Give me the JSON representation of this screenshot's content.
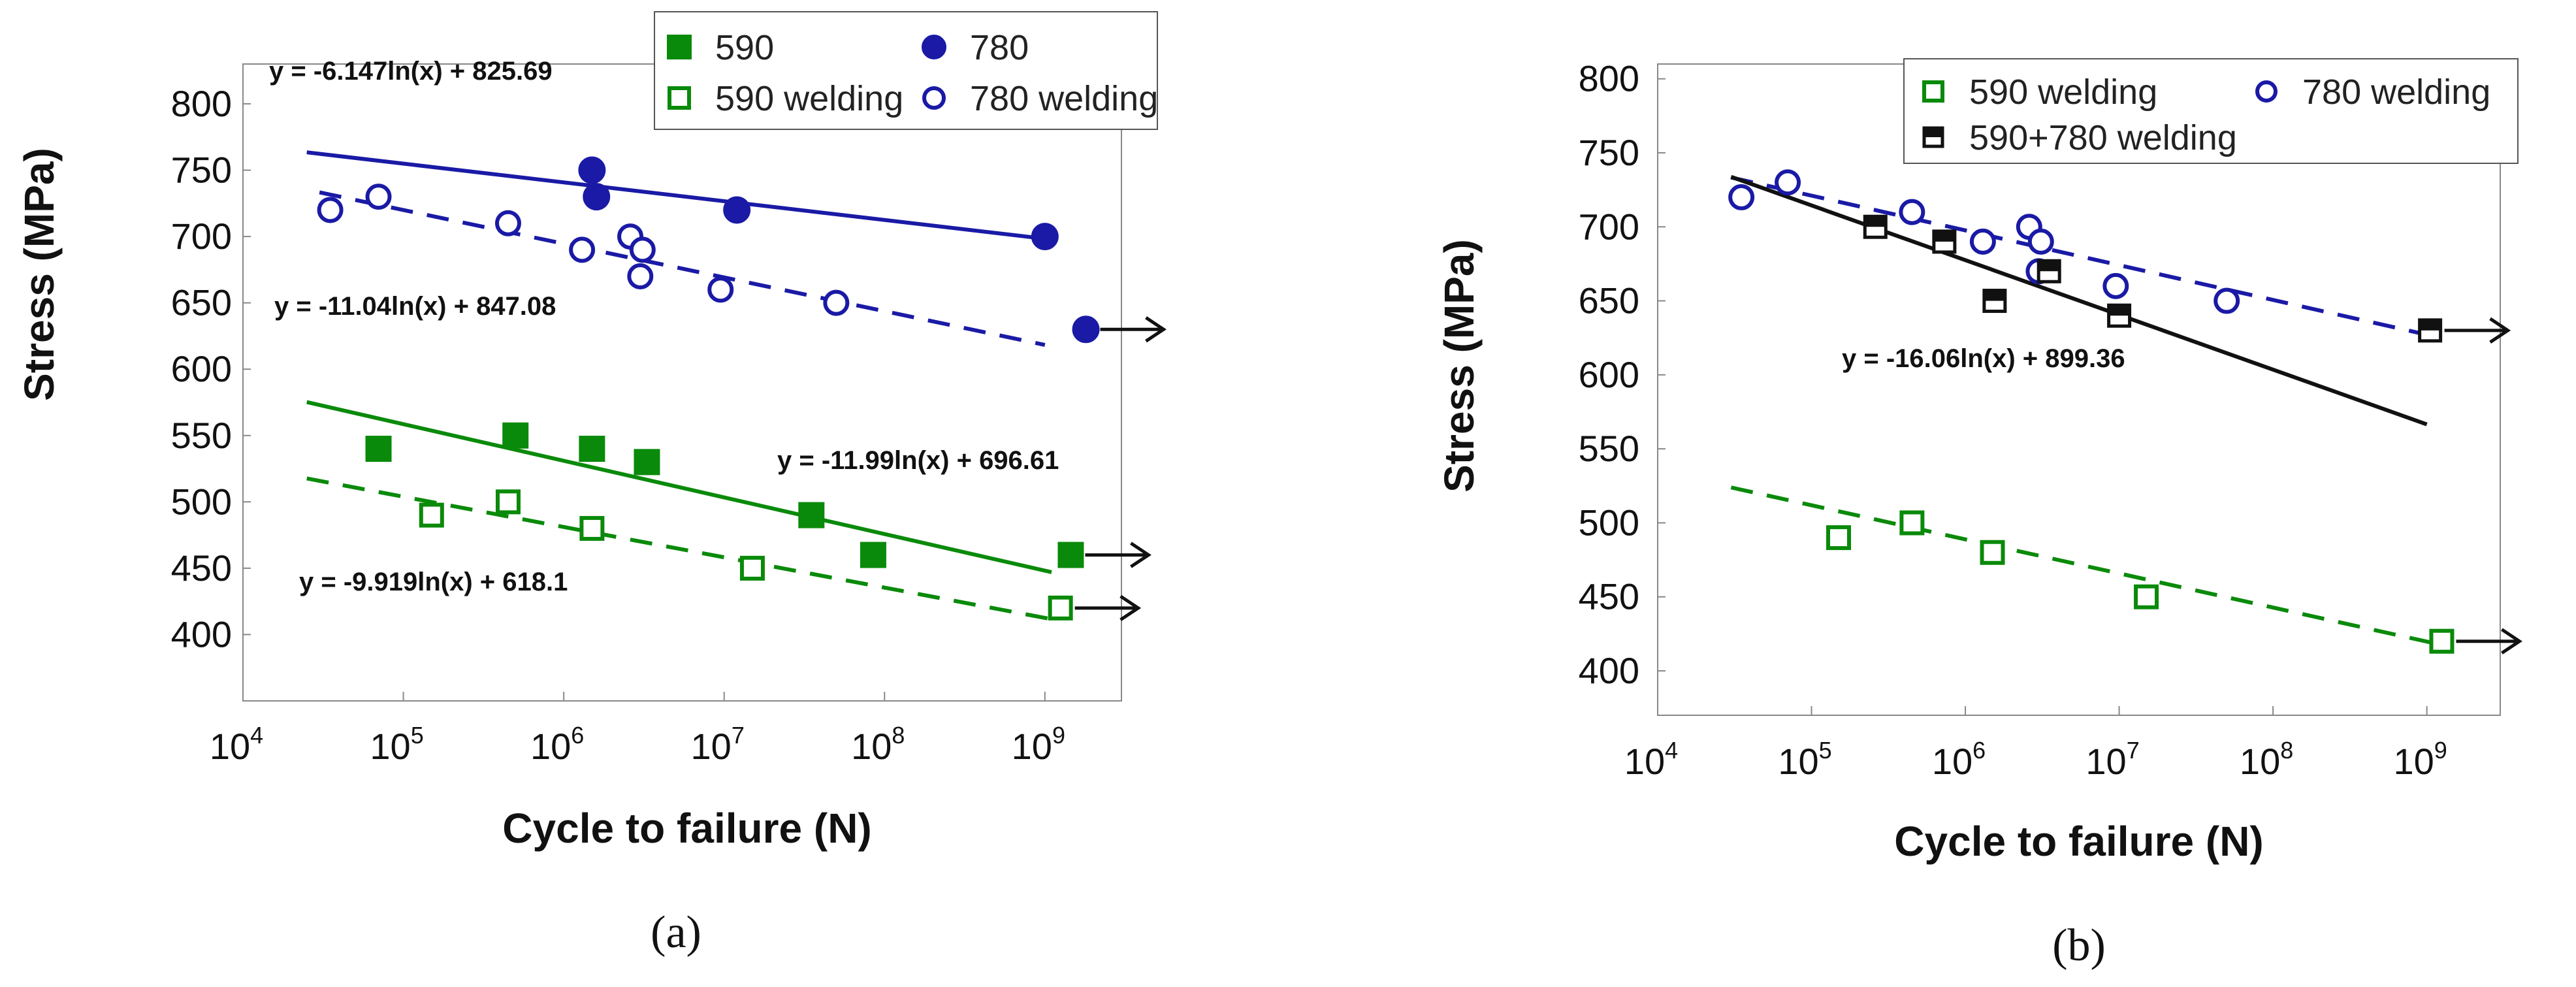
{
  "chart_data": [
    {
      "id": "a",
      "type": "scatter",
      "caption": "(a)",
      "xlabel": "Cycle to failure (N)",
      "ylabel": "Stress (MPa)",
      "xscale": "log",
      "xlim": [
        10000,
        3000000000
      ],
      "ylim": [
        350,
        830
      ],
      "xticks": [
        {
          "value": 10000,
          "base": "10",
          "exp": "4"
        },
        {
          "value": 100000,
          "base": "10",
          "exp": "5"
        },
        {
          "value": 1000000,
          "base": "10",
          "exp": "6"
        },
        {
          "value": 10000000,
          "base": "10",
          "exp": "7"
        },
        {
          "value": 100000000,
          "base": "10",
          "exp": "8"
        },
        {
          "value": 1000000000,
          "base": "10",
          "exp": "9"
        }
      ],
      "yticks": [
        400,
        450,
        500,
        550,
        600,
        650,
        700,
        750,
        800
      ],
      "legend_position": "top-right",
      "legend": [
        {
          "label": "590",
          "marker": "square-filled",
          "color": "#0a8a0a"
        },
        {
          "label": "590 welding",
          "marker": "square-open",
          "color": "#0a8a0a"
        },
        {
          "label": "780",
          "marker": "circle-filled",
          "color": "#1a1aa6"
        },
        {
          "label": "780 welding",
          "marker": "circle-open",
          "color": "#1a1aa6"
        }
      ],
      "series": [
        {
          "name": "590",
          "marker": "square-filled",
          "color": "#0a8a0a",
          "points": [
            [
              70000,
              540
            ],
            [
              500000,
              550
            ],
            [
              1500000,
              540
            ],
            [
              3300000,
              530
            ],
            [
              35000000,
              490
            ],
            [
              85000000,
              460
            ],
            [
              1450000000,
              460
            ]
          ]
        },
        {
          "name": "590 welding",
          "marker": "square-open",
          "color": "#0a8a0a",
          "points": [
            [
              150000,
              490
            ],
            [
              450000,
              500
            ],
            [
              1500000,
              480
            ],
            [
              15000000,
              450
            ],
            [
              1250000000,
              420
            ]
          ]
        },
        {
          "name": "780",
          "marker": "circle-filled",
          "color": "#1a1aa6",
          "points": [
            [
              1500000,
              750
            ],
            [
              1600000,
              730
            ],
            [
              12000000,
              720
            ],
            [
              1000000000,
              700
            ],
            [
              1800000000,
              630
            ]
          ]
        },
        {
          "name": "780 welding",
          "marker": "circle-open",
          "color": "#1a1aa6",
          "points": [
            [
              35000,
              720
            ],
            [
              70000,
              730
            ],
            [
              450000,
              710
            ],
            [
              1300000,
              690
            ],
            [
              2600000,
              700
            ],
            [
              3100000,
              690
            ],
            [
              3000000,
              670
            ],
            [
              9500000,
              660
            ],
            [
              50000000,
              650
            ]
          ]
        }
      ],
      "fits": [
        {
          "label": "y = -6.147ln(x) + 825.69",
          "slope": -6.147,
          "intercept": 825.69,
          "x_range": [
            25000,
            1200000000
          ],
          "color": "#1a1aa6",
          "dashed": false
        },
        {
          "label": "y = -11.04ln(x) + 847.08",
          "slope": -11.04,
          "intercept": 847.08,
          "x_range": [
            30000,
            1000000000
          ],
          "color": "#1a1aa6",
          "dashed": true
        },
        {
          "label": "y = -11.99ln(x) + 696.61",
          "slope": -11.99,
          "intercept": 696.61,
          "x_range": [
            25000,
            1100000000
          ],
          "color": "#0a8a0a",
          "dashed": false
        },
        {
          "label": "y = -9.919ln(x) + 618.1",
          "slope": -9.919,
          "intercept": 618.1,
          "x_range": [
            25000,
            1100000000
          ],
          "color": "#0a8a0a",
          "dashed": true
        }
      ],
      "runouts": [
        {
          "x": 1800000000,
          "y": 630
        },
        {
          "x": 1450000000,
          "y": 460
        },
        {
          "x": 1250000000,
          "y": 420
        }
      ]
    },
    {
      "id": "b",
      "type": "scatter",
      "caption": "(b)",
      "xlabel": "Cycle to failure (N)",
      "ylabel": "Stress (MPa)",
      "xscale": "log",
      "xlim": [
        10000,
        3000000000
      ],
      "ylim": [
        370,
        810
      ],
      "xticks": [
        {
          "value": 10000,
          "base": "10",
          "exp": "4"
        },
        {
          "value": 100000,
          "base": "10",
          "exp": "5"
        },
        {
          "value": 1000000,
          "base": "10",
          "exp": "6"
        },
        {
          "value": 10000000,
          "base": "10",
          "exp": "7"
        },
        {
          "value": 100000000,
          "base": "10",
          "exp": "8"
        },
        {
          "value": 1000000000,
          "base": "10",
          "exp": "9"
        }
      ],
      "yticks": [
        400,
        450,
        500,
        550,
        600,
        650,
        700,
        750,
        800
      ],
      "legend_position": "top-right",
      "legend": [
        {
          "label": "590 welding",
          "marker": "square-open",
          "color": "#0a8a0a"
        },
        {
          "label": "780 welding",
          "marker": "circle-open",
          "color": "#1a1aa6"
        },
        {
          "label": "590+780 welding",
          "marker": "square-half",
          "color": "#111111"
        }
      ],
      "series": [
        {
          "name": "590 welding",
          "marker": "square-open",
          "color": "#0a8a0a",
          "points": [
            [
              150000,
              490
            ],
            [
              450000,
              500
            ],
            [
              1500000,
              480
            ],
            [
              15000000,
              450
            ],
            [
              1250000000,
              420
            ]
          ]
        },
        {
          "name": "780 welding",
          "marker": "circle-open",
          "color": "#1a1aa6",
          "points": [
            [
              35000,
              720
            ],
            [
              70000,
              730
            ],
            [
              450000,
              710
            ],
            [
              1300000,
              690
            ],
            [
              2600000,
              700
            ],
            [
              3100000,
              690
            ],
            [
              3000000,
              670
            ],
            [
              9500000,
              660
            ],
            [
              50000000,
              650
            ]
          ]
        },
        {
          "name": "590+780 welding",
          "marker": "square-half",
          "color": "#111111",
          "points": [
            [
              260000,
              700
            ],
            [
              730000,
              690
            ],
            [
              1550000,
              650
            ],
            [
              3500000,
              670
            ],
            [
              10000000,
              640
            ],
            [
              1050000000,
              630
            ]
          ]
        }
      ],
      "fits": [
        {
          "label": "",
          "slope": -10.2,
          "intercept": 838.5,
          "x_range": [
            30000,
            1000000000
          ],
          "color": "#1a1aa6",
          "dashed": true
        },
        {
          "label": "y = -16.06ln(x) + 899.36",
          "slope": -16.06,
          "intercept": 899.36,
          "x_range": [
            30000,
            1000000000
          ],
          "color": "#111111",
          "dashed": false
        },
        {
          "label": "",
          "slope": -10.0,
          "intercept": 627.0,
          "x_range": [
            30000,
            1100000000
          ],
          "color": "#0a8a0a",
          "dashed": true
        }
      ],
      "runouts": [
        {
          "x": 1050000000,
          "y": 630
        },
        {
          "x": 1250000000,
          "y": 420
        }
      ]
    }
  ]
}
